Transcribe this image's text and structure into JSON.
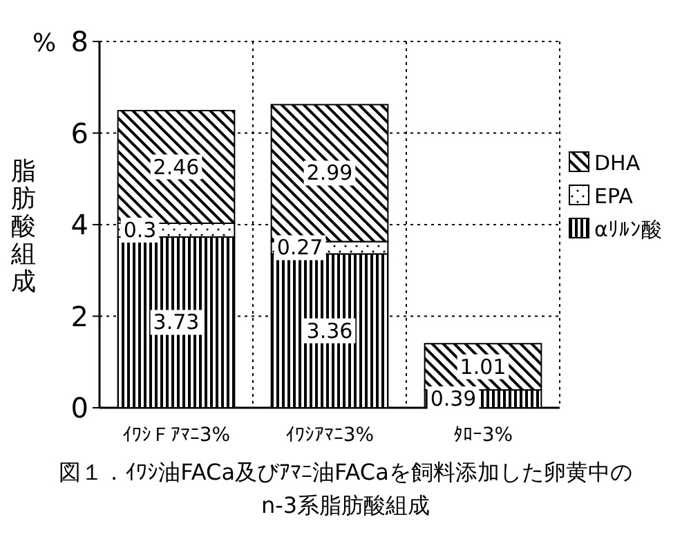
{
  "chart_data": {
    "type": "bar",
    "stacked": true,
    "title": "図１．ｲﾜｼ油FACa及びｱﾏﾆ油FACaを飼料添加した卵黄中のn-3系脂肪酸組成",
    "ylabel": "脂肪酸組成",
    "annotations": [
      "%"
    ],
    "categories": [
      "ｲﾜｼＦｱﾏﾆ3%",
      "ｲﾜｼｱﾏﾆ3%",
      "ﾀﾛｰ3%"
    ],
    "series": [
      {
        "name": "αﾘﾙﾝ酸",
        "color": "#000000",
        "values": [
          3.73,
          3.36,
          0.39
        ],
        "value_labels": [
          "3.73",
          "3.36",
          "0.39"
        ]
      },
      {
        "name": "EPA",
        "color": "#000000",
        "values": [
          0.3,
          0.27,
          null
        ],
        "value_labels": [
          "0.3",
          "0.27",
          null
        ]
      },
      {
        "name": "DHA",
        "color": "#000000",
        "values": [
          2.46,
          2.99,
          1.01
        ],
        "value_labels": [
          "2.46",
          "2.99",
          "1.01"
        ]
      }
    ],
    "ylim": [
      0,
      8
    ],
    "yticks": [
      0,
      2,
      4,
      6,
      8
    ],
    "grid": true,
    "legend": "right"
  }
}
